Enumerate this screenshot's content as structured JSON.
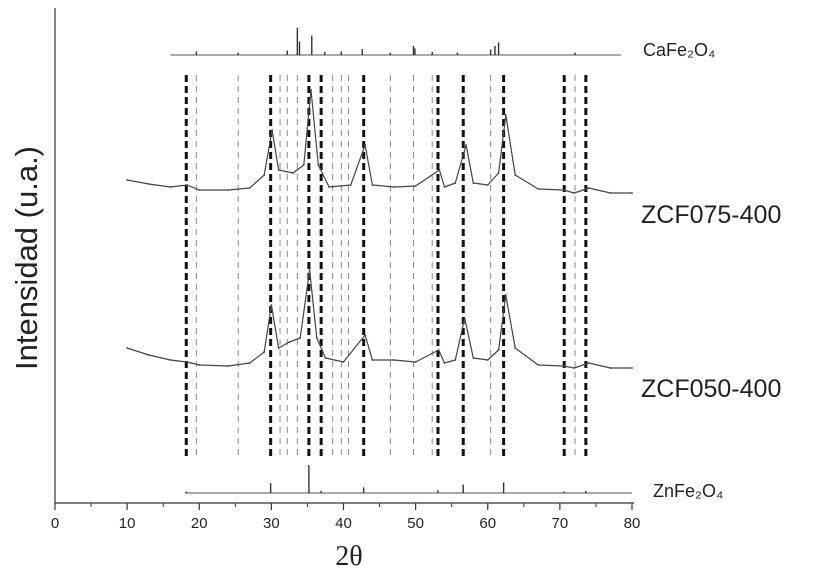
{
  "chart_data": {
    "type": "line",
    "xlabel": "2θ",
    "ylabel": "Intensidad (u.a.)",
    "xlim": [
      0,
      80
    ],
    "x_ticks": [
      0,
      10,
      20,
      30,
      40,
      50,
      60,
      70,
      80
    ],
    "grid": false,
    "legend": "none",
    "series": [
      {
        "name": "ZCF075-400",
        "x": [
          10,
          13,
          16,
          18.3,
          20,
          24,
          27,
          29,
          30.1,
          31,
          33,
          34.5,
          35.5,
          36.5,
          38,
          41,
          43,
          44,
          47,
          50,
          53.3,
          54,
          55.5,
          57,
          58,
          60,
          61.5,
          62.5,
          63.8,
          67,
          70.5,
          72,
          74,
          77,
          80
        ],
        "y": [
          0.55,
          0.51,
          0.48,
          0.5,
          0.45,
          0.45,
          0.47,
          0.6,
          1.05,
          0.65,
          0.62,
          0.7,
          1.45,
          0.7,
          0.48,
          0.5,
          0.9,
          0.5,
          0.48,
          0.49,
          0.65,
          0.48,
          0.52,
          0.9,
          0.52,
          0.5,
          0.62,
          1.2,
          0.6,
          0.46,
          0.45,
          0.42,
          0.47,
          0.42,
          0.42
        ]
      },
      {
        "name": "ZCF050-400",
        "x": [
          10,
          13,
          16,
          18.3,
          20,
          24,
          27,
          29,
          30,
          31,
          32.5,
          34,
          35.3,
          36.3,
          37.5,
          40,
          43,
          44,
          47,
          50,
          53.2,
          54,
          55.5,
          56.8,
          58,
          60,
          61.5,
          62.5,
          63.8,
          67,
          70.5,
          72,
          74,
          77,
          80
        ],
        "y": [
          0.62,
          0.55,
          0.5,
          0.48,
          0.45,
          0.44,
          0.47,
          0.58,
          1.05,
          0.62,
          0.68,
          0.72,
          1.4,
          0.72,
          0.52,
          0.48,
          0.75,
          0.5,
          0.5,
          0.48,
          0.6,
          0.47,
          0.5,
          0.92,
          0.52,
          0.5,
          0.6,
          1.15,
          0.62,
          0.45,
          0.44,
          0.42,
          0.47,
          0.42,
          0.42
        ]
      },
      {
        "name": "CaFe2O4",
        "type": "reference-sticks",
        "x": [
          19.6,
          25.4,
          32.2,
          33.6,
          33.9,
          35.6,
          37.4,
          39.7,
          42.6,
          46.5,
          49.7,
          49.9,
          52.3,
          55.8,
          60.4,
          61.0,
          61.5,
          72.1
        ],
        "y": [
          0.12,
          0.08,
          0.15,
          0.9,
          0.45,
          0.65,
          0.1,
          0.12,
          0.2,
          0.08,
          0.3,
          0.22,
          0.1,
          0.08,
          0.18,
          0.3,
          0.42,
          0.08
        ]
      },
      {
        "name": "ZnFe2O4",
        "type": "reference-sticks",
        "x": [
          18.2,
          29.9,
          35.2,
          36.9,
          42.8,
          53.1,
          56.6,
          62.2,
          70.6,
          73.6
        ],
        "y": [
          0.05,
          0.35,
          1.0,
          0.08,
          0.2,
          0.1,
          0.3,
          0.38,
          0.05,
          0.08
        ]
      }
    ],
    "annotations": {
      "ref_top_label": "CaFe₂O₄",
      "ref_bottom_label": "ZnFe₂O₄",
      "series_label_1": "ZCF075-400",
      "series_label_2": "ZCF050-400"
    },
    "guide_lines": {
      "thick_dashed": [
        18.2,
        29.9,
        35.2,
        36.9,
        42.8,
        53.1,
        56.6,
        62.2,
        70.6,
        73.6
      ],
      "thin_dashed": [
        19.6,
        25.4,
        31.2,
        32.2,
        33.6,
        38.5,
        39.7,
        40.7,
        46.5,
        49.7,
        52.3,
        60.4,
        72.1
      ]
    }
  }
}
